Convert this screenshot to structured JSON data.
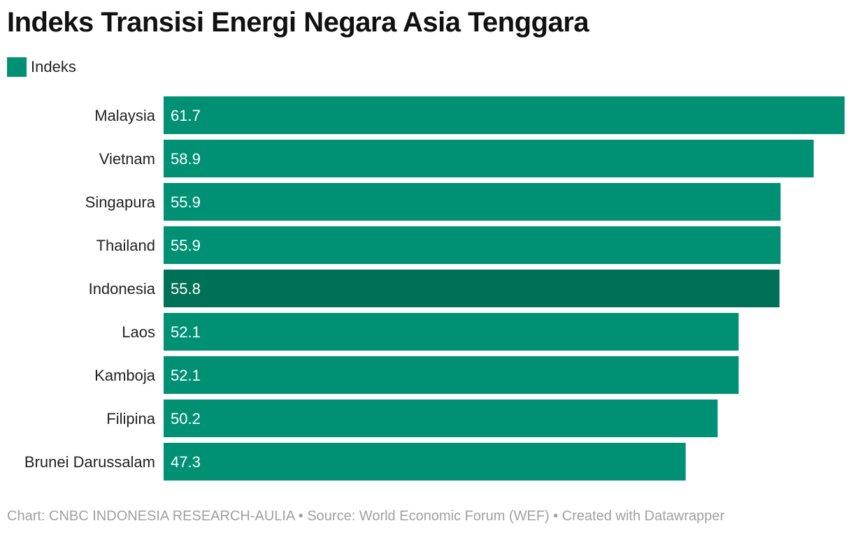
{
  "title": "Indeks Transisi Energi Negara Asia Tenggara",
  "legend": {
    "label": "Indeks"
  },
  "colors": {
    "bar": "#009175",
    "highlight": "#007056",
    "bar_text": "#ffffff",
    "label_text": "#222222"
  },
  "footer": {
    "text": "Chart: CNBC INDONESIA RESEARCH-AULIA • Source: World Economic Forum (WEF) • Created with Datawrapper"
  },
  "chart_data": {
    "type": "bar",
    "orientation": "horizontal",
    "categories": [
      "Malaysia",
      "Vietnam",
      "Singapura",
      "Thailand",
      "Indonesia",
      "Laos",
      "Kamboja",
      "Filipina",
      "Brunei Darussalam"
    ],
    "series": [
      {
        "name": "Indeks",
        "values": [
          61.7,
          58.9,
          55.9,
          55.9,
          55.8,
          52.1,
          52.1,
          50.2,
          47.3
        ]
      }
    ],
    "highlight": "Indonesia",
    "xlim": [
      0,
      61.7
    ],
    "grid": false,
    "legend_position": "top-left"
  }
}
